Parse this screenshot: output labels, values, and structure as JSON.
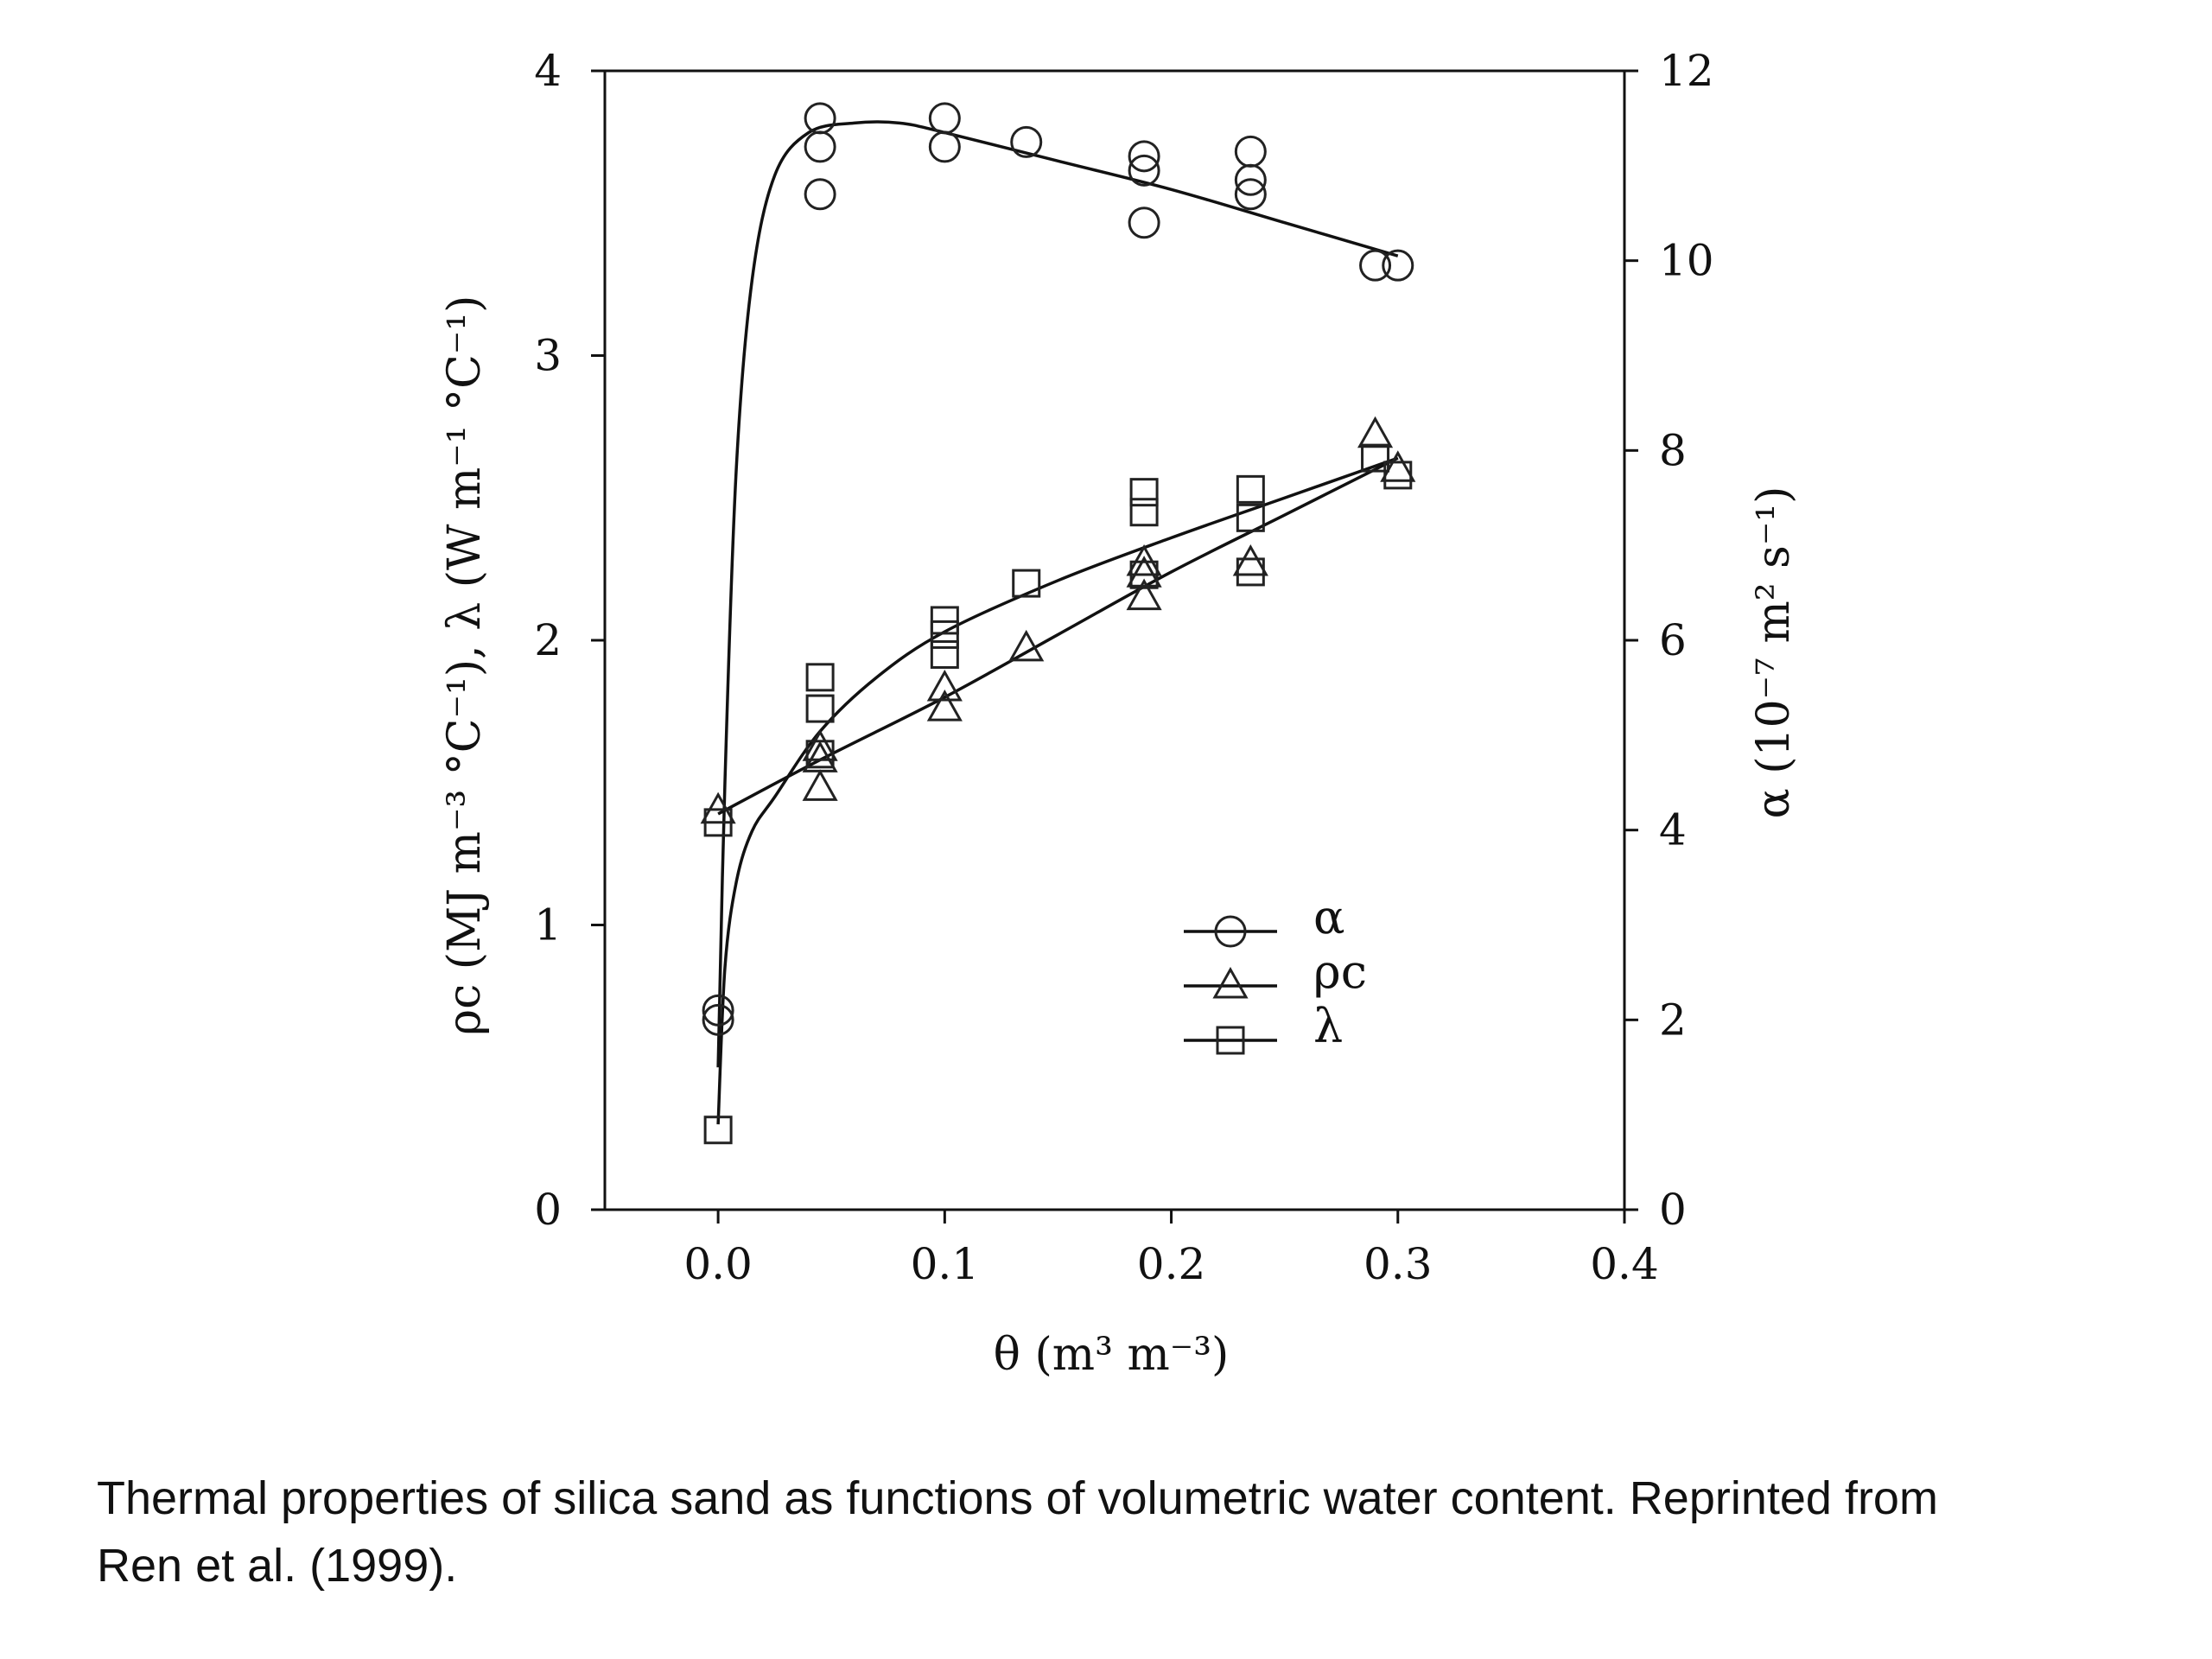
{
  "chart_data": {
    "type": "scatter",
    "xlabel": "θ (m³ m⁻³)",
    "ylabel": "ρc (MJ m⁻³ °C⁻¹), λ (W m⁻¹ °C⁻¹)",
    "y2label": "α (10⁻⁷ m² s⁻¹)",
    "xlim": [
      -0.05,
      0.4
    ],
    "ylim": [
      0,
      4
    ],
    "y2lim": [
      0,
      12
    ],
    "x_ticks": [
      "0.0",
      "0.1",
      "0.2",
      "0.3",
      "0.4"
    ],
    "y_ticks": [
      "0",
      "1",
      "2",
      "3",
      "4"
    ],
    "y2_ticks": [
      "0",
      "2",
      "4",
      "6",
      "8",
      "10",
      "12"
    ],
    "grid": false,
    "legend_position": "lower-right",
    "series": [
      {
        "name": "α",
        "axis": "right",
        "marker": "circle",
        "points": [
          [
            0.0,
            2.1
          ],
          [
            0.0,
            2.0
          ],
          [
            0.045,
            11.5
          ],
          [
            0.045,
            11.2
          ],
          [
            0.045,
            10.7
          ],
          [
            0.1,
            11.5
          ],
          [
            0.1,
            11.2
          ],
          [
            0.136,
            11.25
          ],
          [
            0.188,
            11.1
          ],
          [
            0.188,
            10.95
          ],
          [
            0.188,
            10.4
          ],
          [
            0.235,
            11.15
          ],
          [
            0.235,
            10.85
          ],
          [
            0.235,
            10.7
          ],
          [
            0.29,
            9.95
          ],
          [
            0.3,
            9.95
          ]
        ],
        "fit": [
          [
            0.0,
            1.5
          ],
          [
            0.003,
            4.5
          ],
          [
            0.008,
            7.8
          ],
          [
            0.015,
            9.8
          ],
          [
            0.025,
            10.9
          ],
          [
            0.04,
            11.35
          ],
          [
            0.06,
            11.45
          ],
          [
            0.08,
            11.45
          ],
          [
            0.1,
            11.35
          ],
          [
            0.15,
            11.05
          ],
          [
            0.2,
            10.75
          ],
          [
            0.25,
            10.4
          ],
          [
            0.3,
            10.05
          ]
        ]
      },
      {
        "name": "ρc",
        "axis": "left",
        "marker": "triangle",
        "points": [
          [
            0.0,
            1.4
          ],
          [
            0.045,
            1.62
          ],
          [
            0.045,
            1.58
          ],
          [
            0.045,
            1.48
          ],
          [
            0.1,
            1.83
          ],
          [
            0.1,
            1.76
          ],
          [
            0.136,
            1.97
          ],
          [
            0.188,
            2.27
          ],
          [
            0.188,
            2.23
          ],
          [
            0.188,
            2.15
          ],
          [
            0.235,
            2.27
          ],
          [
            0.29,
            2.72
          ],
          [
            0.3,
            2.6
          ]
        ],
        "fit": [
          [
            0.0,
            1.39
          ],
          [
            0.045,
            1.58
          ],
          [
            0.1,
            1.8
          ],
          [
            0.15,
            2.02
          ],
          [
            0.2,
            2.24
          ],
          [
            0.25,
            2.44
          ],
          [
            0.3,
            2.64
          ]
        ]
      },
      {
        "name": "λ",
        "axis": "left",
        "marker": "square",
        "points": [
          [
            0.0,
            1.36
          ],
          [
            0.0,
            0.28
          ],
          [
            0.045,
            1.87
          ],
          [
            0.045,
            1.76
          ],
          [
            0.045,
            1.6
          ],
          [
            0.1,
            2.07
          ],
          [
            0.1,
            2.02
          ],
          [
            0.1,
            1.95
          ],
          [
            0.136,
            2.2
          ],
          [
            0.188,
            2.52
          ],
          [
            0.188,
            2.45
          ],
          [
            0.188,
            2.23
          ],
          [
            0.235,
            2.53
          ],
          [
            0.235,
            2.43
          ],
          [
            0.235,
            2.24
          ],
          [
            0.29,
            2.64
          ],
          [
            0.3,
            2.58
          ]
        ],
        "fit": [
          [
            0.0,
            0.3
          ],
          [
            0.003,
            0.85
          ],
          [
            0.008,
            1.15
          ],
          [
            0.015,
            1.33
          ],
          [
            0.025,
            1.45
          ],
          [
            0.045,
            1.68
          ],
          [
            0.07,
            1.87
          ],
          [
            0.1,
            2.03
          ],
          [
            0.15,
            2.21
          ],
          [
            0.2,
            2.36
          ],
          [
            0.25,
            2.5
          ],
          [
            0.3,
            2.64
          ]
        ]
      }
    ]
  },
  "caption": {
    "line1": "Thermal properties of silica sand as functions of volumetric water content.  Reprinted from",
    "line2": "Ren et al. (1999)."
  }
}
